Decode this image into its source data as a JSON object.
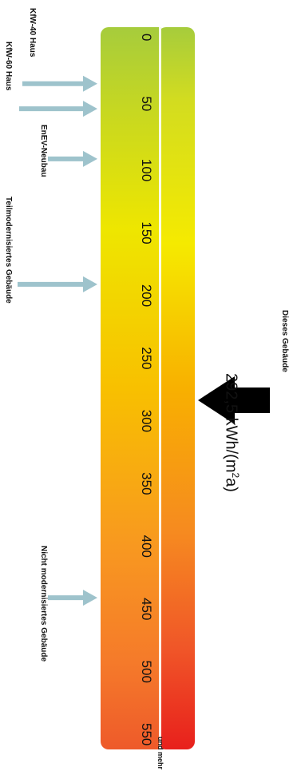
{
  "scale": {
    "title_unit_suffix": "und mehr",
    "ticks": [
      0,
      50,
      100,
      150,
      200,
      250,
      300,
      350,
      400,
      450,
      500,
      550
    ],
    "unit": "kWh/(m²a)"
  },
  "references": [
    {
      "label": "KfW-40 Haus",
      "value": 40
    },
    {
      "label": "KfW-60 Haus",
      "value": 60
    },
    {
      "label": "EnEV-Neubau",
      "value": 100
    },
    {
      "label": "Teilmodernisiertes Gebäude",
      "value": 200
    },
    {
      "label": "Nicht modernisiertes Gebäude",
      "value": 450
    }
  ],
  "building": {
    "label": "Dieses Gebäude",
    "value_text": "292,5 kWh/(m",
    "value_sup": "2",
    "value_suffix": "a)",
    "value": 292.5
  },
  "colors": {
    "green": "#a6cc3c",
    "yellow": "#f2e800",
    "orange": "#f8a020",
    "red": "#e8201c",
    "reference_arrow": "#9ec3cc",
    "building_arrow": "#000000"
  }
}
